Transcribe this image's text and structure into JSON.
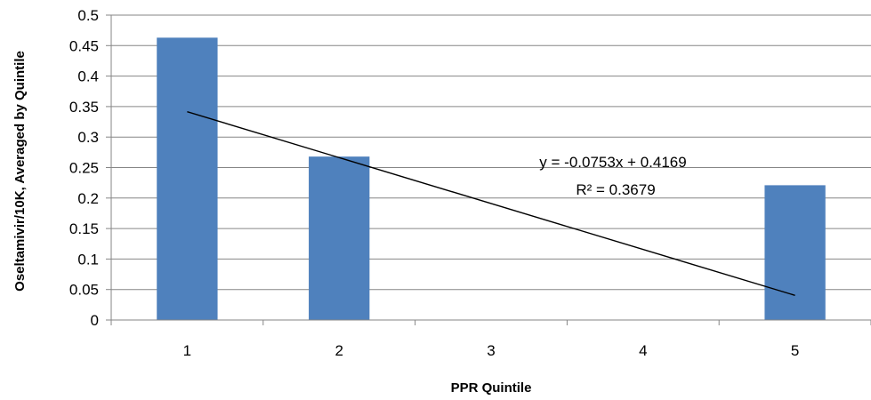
{
  "chart_data": {
    "type": "bar",
    "categories": [
      "1",
      "2",
      "3",
      "4",
      "5"
    ],
    "values": [
      0.463,
      0.268,
      0,
      0,
      0.221
    ],
    "xlabel": "PPR Quintile",
    "ylabel": "Oseltamivir/10K, Averaged by Quintile",
    "ylim": [
      0,
      0.5
    ],
    "yticks": [
      "0",
      "0.05",
      "0.1",
      "0.15",
      "0.2",
      "0.25",
      "0.3",
      "0.35",
      "0.4",
      "0.45",
      "0.5"
    ],
    "grid": true,
    "legend": "none",
    "bar_color": "#4f81bd",
    "trendline": {
      "type": "linear",
      "slope": -0.0753,
      "intercept": 0.4169,
      "equation_label": "y = -0.0753x + 0.4169",
      "r2_label": "R² = 0.3679"
    }
  }
}
